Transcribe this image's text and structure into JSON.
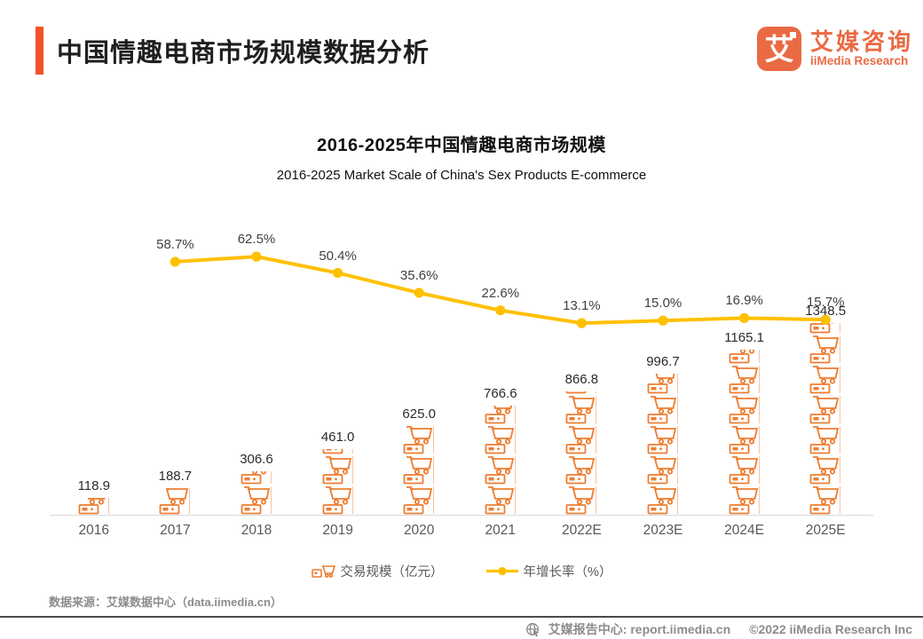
{
  "header": {
    "title": "中国情趣电商市场规模数据分析"
  },
  "logo": {
    "glyph": "艾",
    "brand_cn": "艾媒咨询",
    "brand_en": "iiMedia Research",
    "color": "#EA6A43"
  },
  "chart_data": {
    "type": "combo",
    "title": "2016-2025年中国情趣电商市场规模",
    "subtitle": "2016-2025 Market Scale of China's Sex Products E-commerce",
    "categories": [
      "2016",
      "2017",
      "2018",
      "2019",
      "2020",
      "2021",
      "2022E",
      "2023E",
      "2024E",
      "2025E"
    ],
    "series": [
      {
        "name": "交易规模（亿元）",
        "type": "pictogram-bar",
        "icon": "shopping-cart",
        "color": "#ED7D31",
        "values": [
          118.9,
          188.7,
          306.6,
          461.0,
          625.0,
          766.6,
          866.8,
          996.7,
          1165.1,
          1348.5
        ],
        "labels": [
          "118.9",
          "188.7",
          "306.6",
          "461.0",
          "625.0",
          "766.6",
          "866.8",
          "996.7",
          "1165.1",
          "1348.5"
        ]
      },
      {
        "name": "年增长率（%）",
        "type": "line",
        "color": "#FFC000",
        "values": [
          null,
          58.7,
          62.5,
          50.4,
          35.6,
          22.6,
          13.1,
          15.0,
          16.9,
          15.7
        ],
        "labels": [
          "",
          "58.7%",
          "62.5%",
          "50.4%",
          "35.6%",
          "22.6%",
          "13.1%",
          "15.0%",
          "16.9%",
          "15.7%"
        ]
      }
    ],
    "ylim_bar": [
      0,
      1400
    ],
    "ylim_line": [
      0,
      70
    ],
    "grid": false,
    "legend_position": "bottom"
  },
  "legend": {
    "bar_label": "交易规模（亿元）",
    "line_label": "年增长率（%）"
  },
  "source_note": "数据来源：艾媒数据中心（data.iimedia.cn）",
  "footer": {
    "report_center": "艾媒报告中心: report.iimedia.cn",
    "copyright": "©2022  iiMedia Research  Inc"
  }
}
